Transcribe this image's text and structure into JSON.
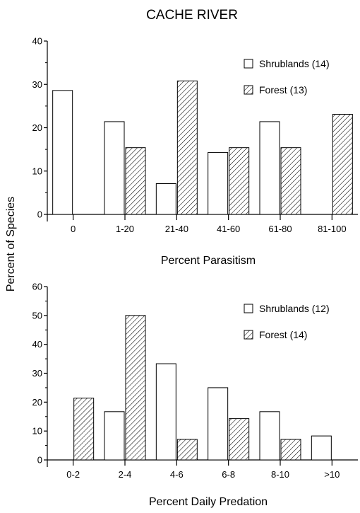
{
  "figure": {
    "title": "CACHE RIVER",
    "shared_ylabel": "Percent of Species"
  },
  "chart_data": [
    {
      "type": "bar",
      "title": "CACHE RIVER",
      "xlabel": "Percent Parasitism",
      "ylabel": "Percent of Species",
      "categories": [
        "0",
        "1-20",
        "21-40",
        "41-60",
        "61-80",
        "81-100"
      ],
      "ylim": [
        0,
        40
      ],
      "yticks": [
        "0",
        "10",
        "20",
        "30",
        "40"
      ],
      "grid": false,
      "legend_position": "top-right",
      "series": [
        {
          "name": "Shrublands (14)",
          "pattern": "open",
          "values": [
            28.6,
            21.4,
            7.1,
            14.3,
            21.4,
            0
          ]
        },
        {
          "name": "Forest (13)",
          "pattern": "hatched",
          "values": [
            0,
            15.4,
            30.8,
            15.4,
            15.4,
            23.1
          ]
        }
      ]
    },
    {
      "type": "bar",
      "title": "",
      "xlabel": "Percent Daily Predation",
      "ylabel": "Percent of Species",
      "categories": [
        "0-2",
        "2-4",
        "4-6",
        "6-8",
        "8-10",
        ">10"
      ],
      "ylim": [
        0,
        60
      ],
      "yticks": [
        "0",
        "10",
        "20",
        "30",
        "40",
        "50",
        "60"
      ],
      "grid": false,
      "legend_position": "top-right",
      "series": [
        {
          "name": "Shrublands (12)",
          "pattern": "open",
          "values": [
            0,
            16.7,
            33.3,
            25.0,
            16.7,
            8.3
          ]
        },
        {
          "name": "Forest (14)",
          "pattern": "hatched",
          "values": [
            21.4,
            50.0,
            7.1,
            14.3,
            7.1,
            0
          ]
        }
      ]
    }
  ],
  "colors": {
    "ink": "#000000",
    "background": "#ffffff"
  }
}
